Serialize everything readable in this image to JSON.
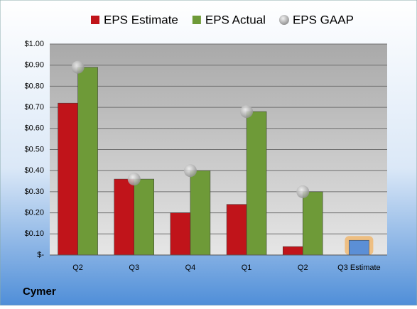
{
  "chart_data": {
    "type": "bar",
    "title": "Cymer",
    "categories": [
      "Q2",
      "Q3",
      "Q4",
      "Q1",
      "Q2",
      "Q3 Estimate"
    ],
    "series": [
      {
        "name": "EPS Estimate",
        "color": "#c0141a",
        "point_colors": [
          "#c0141a",
          "#c0141a",
          "#c0141a",
          "#c0141a",
          "#c0141a",
          "#5b8fd6"
        ],
        "values": [
          0.72,
          0.36,
          0.2,
          0.24,
          0.04,
          0.07
        ]
      },
      {
        "name": "EPS Actual",
        "color": "#6e9a38",
        "values": [
          0.89,
          0.36,
          0.4,
          0.68,
          0.3,
          null
        ]
      },
      {
        "name": "EPS GAAP",
        "color": "#a8a8a8",
        "mark": "circle",
        "values": [
          0.89,
          0.36,
          0.4,
          0.68,
          0.3,
          null
        ]
      }
    ],
    "ylim": [
      0,
      1.0
    ],
    "yticks": [
      {
        "value": 0,
        "label": "$-"
      },
      {
        "value": 0.1,
        "label": "$0.10"
      },
      {
        "value": 0.2,
        "label": "$0.20"
      },
      {
        "value": 0.3,
        "label": "$0.30"
      },
      {
        "value": 0.4,
        "label": "$0.40"
      },
      {
        "value": 0.5,
        "label": "$0.50"
      },
      {
        "value": 0.6,
        "label": "$0.60"
      },
      {
        "value": 0.7,
        "label": "$0.70"
      },
      {
        "value": 0.8,
        "label": "$0.80"
      },
      {
        "value": 0.9,
        "label": "$0.90"
      },
      {
        "value": 1.0,
        "label": "$1.00"
      }
    ],
    "grid": true,
    "legend": "top"
  }
}
